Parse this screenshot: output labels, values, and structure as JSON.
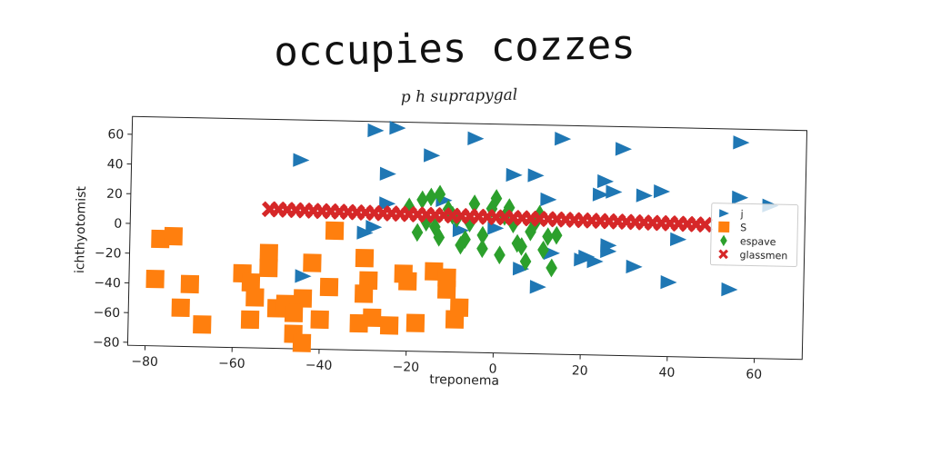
{
  "page": {
    "title": "occupies cozzes",
    "subtitle": "p h suprapygal"
  },
  "chart_data": {
    "type": "scatter",
    "title": "occupies cozzes",
    "subtitle": "p h suprapygal",
    "xlabel": "treponema",
    "ylabel": "ichthyotomist",
    "xlim": [
      -84,
      71
    ],
    "ylim": [
      -82,
      72
    ],
    "xticks": [
      -80,
      -60,
      -40,
      -20,
      0,
      20,
      40,
      60
    ],
    "yticks": [
      -80,
      -60,
      -40,
      -20,
      0,
      20,
      40,
      60
    ],
    "grid": false,
    "legend": "right",
    "series": [
      {
        "name": "j",
        "marker": "triangle-right",
        "color": "#1f77b4",
        "x": [
          -28,
          -23,
          -45,
          -25,
          -15,
          -5,
          9,
          15,
          29,
          56,
          4,
          25,
          27,
          34,
          38,
          12,
          24,
          63,
          56,
          -25,
          -12,
          20,
          26,
          26,
          21,
          23,
          32,
          13,
          10,
          40,
          42,
          54,
          -28,
          -30,
          -8,
          0,
          6,
          -44
        ],
        "y": [
          66,
          68,
          45,
          37,
          50,
          62,
          38,
          63,
          57,
          63,
          38,
          35,
          28,
          26,
          29,
          22,
          26,
          21,
          26,
          17,
          20,
          -18,
          -12,
          -8,
          -16,
          -19,
          -22,
          -14,
          -37,
          -32,
          -3,
          -36,
          1,
          -3,
          0,
          2,
          -25,
          -33
        ]
      },
      {
        "name": "S",
        "marker": "square",
        "color": "#ff7f0e",
        "x": [
          -77,
          -74,
          -78,
          -70,
          -72,
          -67,
          -58,
          -52,
          -52,
          -56,
          -55,
          -50,
          -48,
          -44,
          -42,
          -38,
          -37,
          -30,
          -29,
          -30,
          -28,
          -24,
          -21,
          -20,
          -18,
          -14,
          -9,
          -8,
          -11,
          -11,
          -46,
          -44,
          -46,
          -40,
          -56,
          -31
        ],
        "y": [
          -10,
          -8,
          -37,
          -40,
          -56,
          -67,
          -32,
          -18,
          -28,
          -38,
          -48,
          -55,
          -52,
          -48,
          -24,
          -40,
          -2,
          -20,
          -35,
          -44,
          -60,
          -65,
          -30,
          -35,
          -63,
          -28,
          -60,
          -52,
          -32,
          -40,
          -72,
          -78,
          -58,
          -62,
          -63,
          -64
        ]
      },
      {
        "name": "espave",
        "marker": "diamond",
        "color": "#2ca02c",
        "x": [
          -20,
          -17,
          -15,
          -13,
          -16,
          -18,
          -13,
          -10,
          -8,
          -6,
          -3,
          -1,
          0,
          2,
          4,
          6,
          8,
          10,
          12,
          -5,
          -3,
          5,
          7,
          9,
          -11,
          -14,
          11,
          13,
          -9,
          -7,
          1,
          3,
          14
        ],
        "y": [
          15,
          20,
          22,
          24,
          5,
          -2,
          -5,
          10,
          -10,
          5,
          -3,
          15,
          22,
          10,
          5,
          -10,
          0,
          12,
          -3,
          18,
          -12,
          -8,
          -20,
          6,
          14,
          2,
          -12,
          -24,
          8,
          -6,
          -16,
          16,
          -2
        ]
      },
      {
        "name": "glassmen",
        "marker": "x",
        "color": "#d62728",
        "x": [
          -52,
          -50,
          -48,
          -46,
          -44,
          -42,
          -40,
          -38,
          -36,
          -34,
          -32,
          -30,
          -28,
          -26,
          -24,
          -22,
          -20,
          -18,
          -16,
          -14,
          -12,
          -10,
          -8,
          -6,
          -4,
          -2,
          0,
          2,
          4,
          6,
          8,
          10,
          12,
          14,
          16,
          18,
          20,
          22,
          24,
          26,
          28,
          30,
          32,
          34,
          36,
          38,
          40,
          42,
          44,
          46,
          48
        ],
        "y": [
          11.5,
          11.5,
          11.4,
          11.3,
          11.2,
          11.1,
          11.0,
          11.0,
          10.9,
          10.8,
          10.7,
          10.6,
          10.5,
          10.4,
          10.4,
          10.3,
          10.2,
          10.1,
          10.0,
          9.9,
          9.9,
          9.8,
          9.7,
          9.6,
          9.5,
          9.4,
          9.3,
          9.3,
          9.2,
          9.1,
          9.0,
          8.9,
          8.8,
          8.8,
          8.7,
          8.6,
          8.5,
          8.4,
          8.3,
          8.2,
          8.2,
          8.1,
          8.0,
          7.9,
          7.8,
          7.7,
          7.7,
          7.6,
          7.5,
          7.4,
          7.3
        ]
      }
    ]
  }
}
